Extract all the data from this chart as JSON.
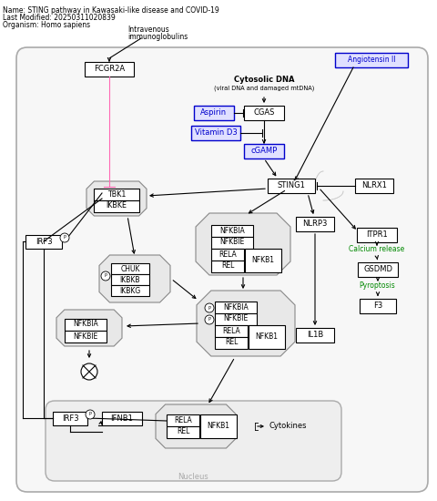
{
  "title": "Name: STING pathway in Kawasaki-like disease and COVID-19",
  "last_modified": "Last Modified: 20250311020839",
  "organism": "Organism: Homo sapiens",
  "bg_color": "#ffffff",
  "outer_box_color": "#aaaaaa",
  "node_fill_light": "#e8e8e8",
  "node_fill_white": "#ffffff",
  "blue_box_color": "#0000cc",
  "blue_fill": "#e0e0ff",
  "green_text": "#008800",
  "pink_line": "#ff69b4"
}
